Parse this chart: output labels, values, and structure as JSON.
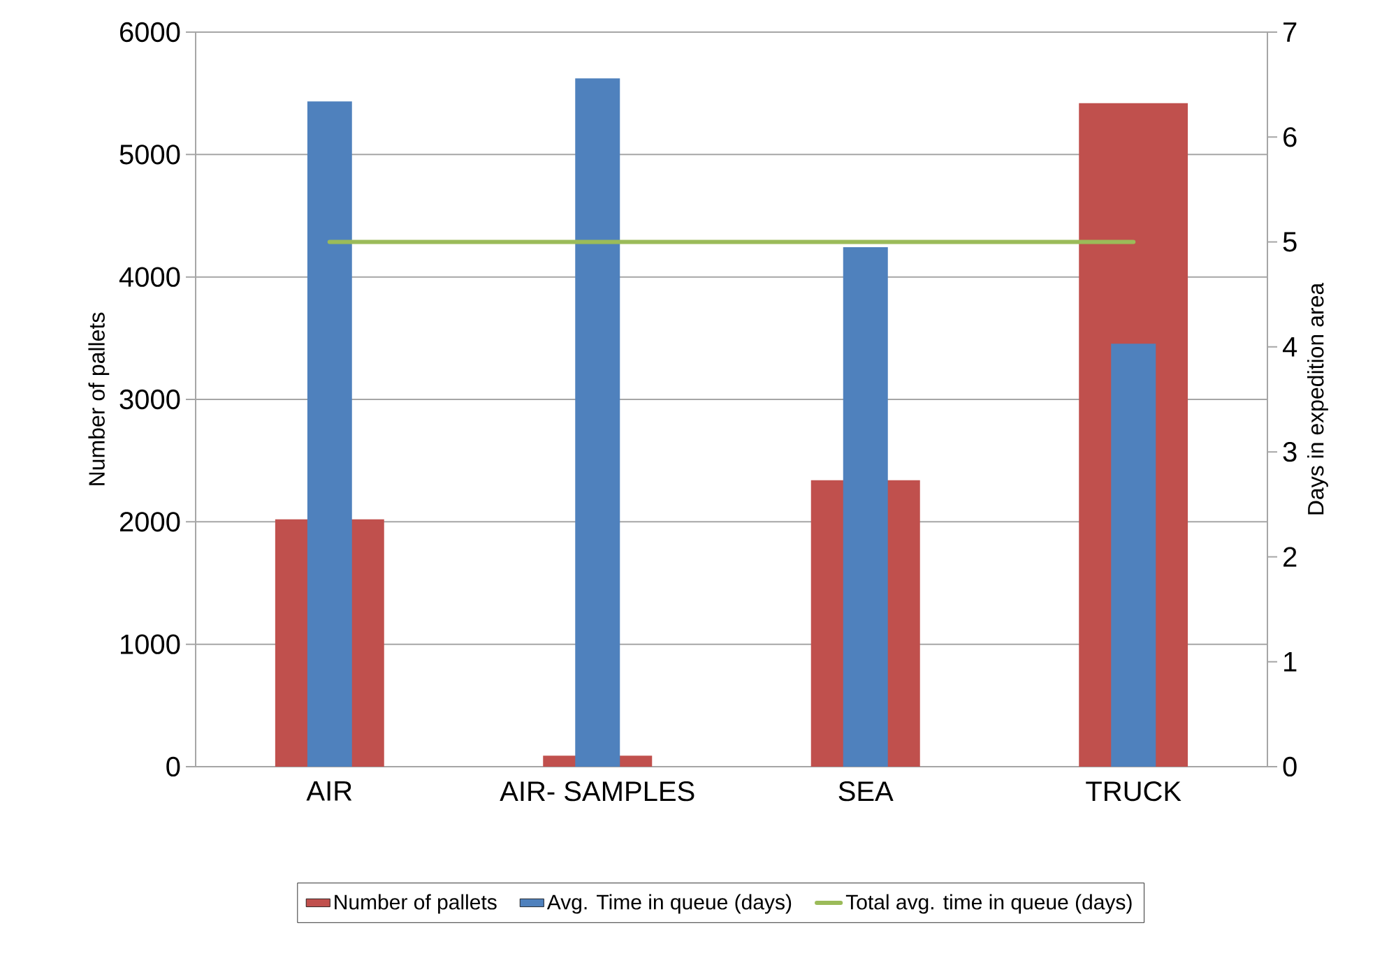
{
  "chart_data": {
    "type": "bar",
    "categories": [
      "AIR",
      "AIR- SAMPLES",
      "SEA",
      "TRUCK"
    ],
    "series": [
      {
        "name": "Number of pallets",
        "color": "#c0504d",
        "values": [
          2020,
          90,
          2340,
          5420
        ]
      },
      {
        "name": "Avg. Time in queue (days)",
        "color": "#4f81bd",
        "axis": "y2",
        "values": [
          6.34,
          6.56,
          4.95,
          4.03
        ]
      },
      {
        "name": "Total avg. time in queue (days)",
        "color": "#9bbb59",
        "axis": "y2",
        "type": "line",
        "values": [
          5,
          5,
          5,
          5
        ]
      }
    ],
    "ylabel": "Number of pallets",
    "y2label": "Days in expedition area",
    "ylim": [
      0,
      6000
    ],
    "yticks": [
      0,
      1000,
      2000,
      3000,
      4000,
      5000,
      6000
    ],
    "y2lim": [
      0,
      7
    ],
    "y2ticks": [
      0,
      1,
      2,
      3,
      4,
      5,
      6,
      7
    ],
    "grid": "y",
    "legend": "bottom"
  }
}
